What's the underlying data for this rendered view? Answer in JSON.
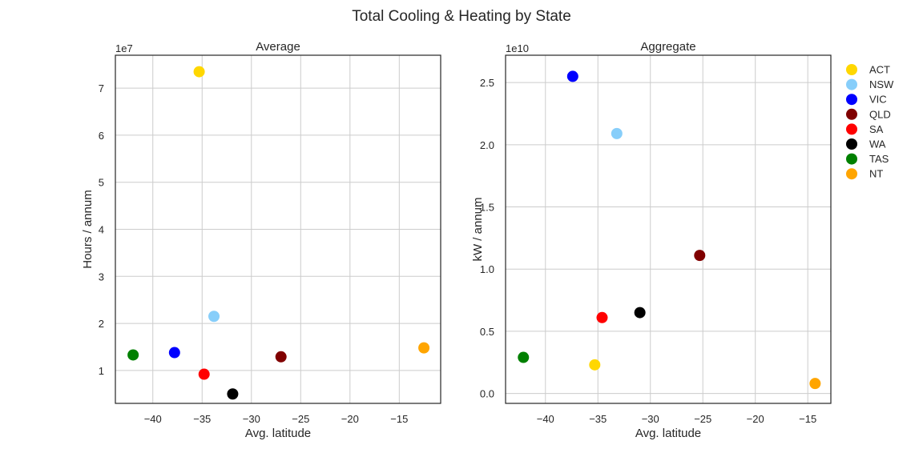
{
  "figure": {
    "title": "Total Cooling & Heating by State"
  },
  "legend": {
    "placement": "right",
    "entries": [
      "ACT",
      "NSW",
      "VIC",
      "QLD",
      "SA",
      "WA",
      "TAS",
      "NT"
    ]
  },
  "colors": {
    "ACT": "#ffd700",
    "NSW": "#87cefa",
    "VIC": "#0000ff",
    "QLD": "#800000",
    "SA": "#ff0000",
    "WA": "#000000",
    "TAS": "#008000",
    "NT": "#ffa500",
    "grid": "#cccccc",
    "frame": "#262626"
  },
  "chart_data": [
    {
      "type": "scatter",
      "title": "Average",
      "xlabel": "Avg. latitude",
      "ylabel": "Hours / annum",
      "offset_label": "1e7",
      "xlim": [
        -43.8,
        -10.8
      ],
      "ylim": [
        0.3,
        7.7
      ],
      "xticks": [
        -40,
        -35,
        -30,
        -25,
        -20,
        -15
      ],
      "xtick_labels": [
        "−40",
        "−35",
        "−30",
        "−25",
        "−20",
        "−15"
      ],
      "yticks": [
        1,
        2,
        3,
        4,
        5,
        6,
        7
      ],
      "ytick_labels": [
        "1",
        "2",
        "3",
        "4",
        "5",
        "6",
        "7"
      ],
      "grid": true,
      "series": [
        {
          "name": "ACT",
          "x": -35.3,
          "y": 7.35
        },
        {
          "name": "NSW",
          "x": -33.8,
          "y": 2.15
        },
        {
          "name": "VIC",
          "x": -37.8,
          "y": 1.38
        },
        {
          "name": "QLD",
          "x": -27.0,
          "y": 1.29
        },
        {
          "name": "SA",
          "x": -34.8,
          "y": 0.92
        },
        {
          "name": "WA",
          "x": -31.9,
          "y": 0.5
        },
        {
          "name": "TAS",
          "x": -42.0,
          "y": 1.33
        },
        {
          "name": "NT",
          "x": -12.5,
          "y": 1.48
        }
      ]
    },
    {
      "type": "scatter",
      "title": "Aggregate",
      "xlabel": "Avg. latitude",
      "ylabel": "kW / annum",
      "offset_label": "1e10",
      "xlim": [
        -43.8,
        -12.8
      ],
      "ylim": [
        -0.08,
        2.72
      ],
      "xticks": [
        -40,
        -35,
        -30,
        -25,
        -20,
        -15
      ],
      "xtick_labels": [
        "−40",
        "−35",
        "−30",
        "−25",
        "−20",
        "−15"
      ],
      "yticks": [
        0.0,
        0.5,
        1.0,
        1.5,
        2.0,
        2.5
      ],
      "ytick_labels": [
        "0.0",
        "0.5",
        "1.0",
        "1.5",
        "2.0",
        "2.5"
      ],
      "grid": true,
      "series": [
        {
          "name": "ACT",
          "x": -35.3,
          "y": 0.23
        },
        {
          "name": "NSW",
          "x": -33.2,
          "y": 2.09
        },
        {
          "name": "VIC",
          "x": -37.4,
          "y": 2.55
        },
        {
          "name": "QLD",
          "x": -25.3,
          "y": 1.11
        },
        {
          "name": "SA",
          "x": -34.6,
          "y": 0.61
        },
        {
          "name": "WA",
          "x": -31.0,
          "y": 0.65
        },
        {
          "name": "TAS",
          "x": -42.1,
          "y": 0.29
        },
        {
          "name": "NT",
          "x": -14.3,
          "y": 0.08
        }
      ]
    }
  ]
}
